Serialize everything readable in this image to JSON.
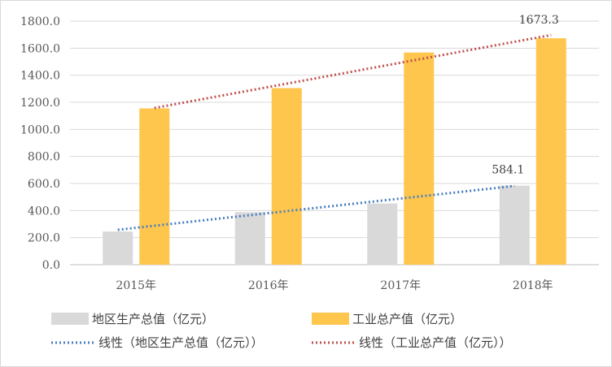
{
  "chart_data": {
    "type": "bar",
    "title": "",
    "xlabel": "",
    "ylabel": "",
    "categories": [
      "2015年",
      "2016年",
      "2017年",
      "2018年"
    ],
    "ylim": [
      0,
      1800
    ],
    "ytick_step": 200,
    "ytick_labels": [
      "0.0",
      "200.0",
      "400.0",
      "600.0",
      "800.0",
      "1000.0",
      "1200.0",
      "1400.0",
      "1600.0",
      "1800.0"
    ],
    "grid": true,
    "legend_position": "bottom",
    "series": [
      {
        "name": "地区生产总值（亿元）",
        "values": [
          245,
          388,
          452,
          584.1
        ],
        "color": "#d9d9d9"
      },
      {
        "name": "工业总产值（亿元）",
        "values": [
          1155,
          1305,
          1568,
          1673.3
        ],
        "color": "#ffc64d"
      }
    ],
    "trendlines": [
      {
        "name": "线性（地区生产总值（亿元））",
        "series": 0,
        "start": 258,
        "end": 582,
        "color": "#4a7ec0",
        "style": "dotted"
      },
      {
        "name": "线性（工业总产值（亿元））",
        "series": 1,
        "start": 1158,
        "end": 1697,
        "color": "#c0504d",
        "style": "dotted"
      }
    ],
    "data_labels": [
      {
        "series": 0,
        "index": 3,
        "text": "584.1"
      },
      {
        "series": 1,
        "index": 3,
        "text": "1673.3"
      }
    ]
  }
}
